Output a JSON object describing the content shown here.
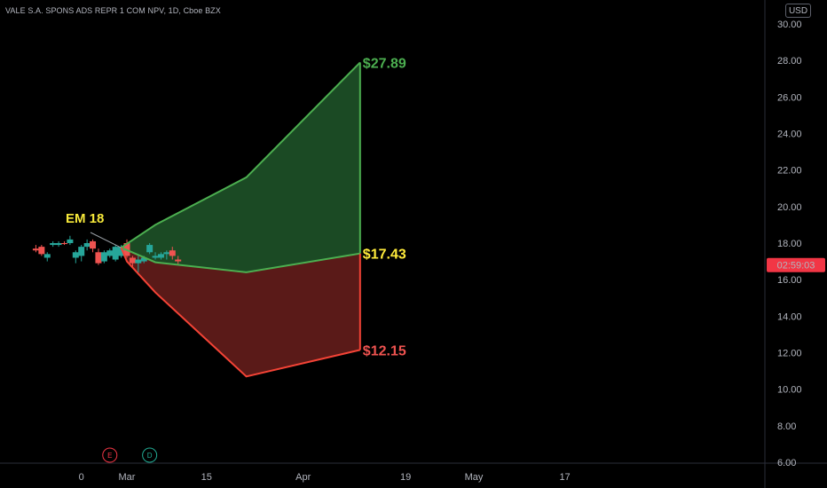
{
  "header": {
    "symbol_title": "VALE S.A. SPONS ADS REPR 1 COM NPV, 1D, Cboe BZX",
    "currency": "USD"
  },
  "price_axis": {
    "ticks": [
      "30.00",
      "28.00",
      "26.00",
      "24.00",
      "22.00",
      "20.00",
      "18.00",
      "16.00",
      "14.00",
      "12.00",
      "10.00",
      "8.00",
      "6.00"
    ],
    "countdown_label": "02:59:03",
    "countdown_price": 16.8
  },
  "time_axis": {
    "ticks": [
      {
        "label": "0",
        "day": -8
      },
      {
        "label": "Mar",
        "day": 0
      },
      {
        "label": "15",
        "day": 14
      },
      {
        "label": "Apr",
        "day": 31
      },
      {
        "label": "19",
        "day": 49
      },
      {
        "label": "May",
        "day": 61
      },
      {
        "label": "17",
        "day": 77
      }
    ]
  },
  "annotations": {
    "em_label": "EM 18",
    "upper_label": "$27.89",
    "mid_label": "$17.43",
    "lower_label": "$12.15"
  },
  "events": [
    {
      "label": "E",
      "day": -3,
      "color": "#f23645"
    },
    {
      "label": "D",
      "day": 4,
      "color": "#22ab94"
    }
  ],
  "colors": {
    "up_candle": "#26a69a",
    "down_candle": "#ef5350",
    "upper_line": "#4caf50",
    "lower_line": "#f44336",
    "upper_fill": "#1b4a24",
    "lower_fill": "#5a1a18",
    "em_color": "#f7e93a",
    "mid_color": "#ffeb3b"
  },
  "chart_data": {
    "type": "candlestick",
    "x_axis": "days relative to 1 Mar",
    "ylim": [
      6,
      30
    ],
    "candles": [
      {
        "day": -16,
        "o": 17.7,
        "h": 17.9,
        "l": 17.5,
        "c": 17.6
      },
      {
        "day": -15,
        "o": 17.8,
        "h": 17.9,
        "l": 17.3,
        "c": 17.4
      },
      {
        "day": -14,
        "o": 17.2,
        "h": 17.5,
        "l": 17.0,
        "c": 17.4
      },
      {
        "day": -13,
        "o": 17.9,
        "h": 18.1,
        "l": 17.8,
        "c": 18.0
      },
      {
        "day": -12,
        "o": 17.9,
        "h": 18.1,
        "l": 17.8,
        "c": 18.0
      },
      {
        "day": -11,
        "o": 18.0,
        "h": 18.1,
        "l": 17.9,
        "c": 17.95
      },
      {
        "day": -10,
        "o": 18.0,
        "h": 18.4,
        "l": 17.9,
        "c": 18.2
      },
      {
        "day": -9,
        "o": 17.2,
        "h": 17.6,
        "l": 16.9,
        "c": 17.5
      },
      {
        "day": -8,
        "o": 17.3,
        "h": 17.9,
        "l": 17.0,
        "c": 17.8
      },
      {
        "day": -7,
        "o": 17.8,
        "h": 18.2,
        "l": 17.6,
        "c": 18.0
      },
      {
        "day": -6,
        "o": 18.1,
        "h": 18.2,
        "l": 17.5,
        "c": 17.7
      },
      {
        "day": -5,
        "o": 17.5,
        "h": 17.7,
        "l": 16.8,
        "c": 16.9
      },
      {
        "day": -4,
        "o": 17.0,
        "h": 17.6,
        "l": 16.9,
        "c": 17.5
      },
      {
        "day": -3,
        "o": 17.3,
        "h": 17.7,
        "l": 17.2,
        "c": 17.6
      },
      {
        "day": -2,
        "o": 17.1,
        "h": 17.9,
        "l": 17.0,
        "c": 17.8
      },
      {
        "day": -1,
        "o": 17.3,
        "h": 17.9,
        "l": 17.2,
        "c": 17.8
      },
      {
        "day": 0,
        "o": 18.0,
        "h": 18.2,
        "l": 17.2,
        "c": 17.3
      },
      {
        "day": 1,
        "o": 17.2,
        "h": 17.3,
        "l": 16.7,
        "c": 16.9
      },
      {
        "day": 2,
        "o": 16.9,
        "h": 17.3,
        "l": 16.4,
        "c": 17.1
      },
      {
        "day": 3,
        "o": 17.0,
        "h": 17.3,
        "l": 16.9,
        "c": 17.2
      },
      {
        "day": 4,
        "o": 17.5,
        "h": 18.0,
        "l": 17.4,
        "c": 17.9
      },
      {
        "day": 5,
        "o": 17.2,
        "h": 17.5,
        "l": 17.1,
        "c": 17.3
      },
      {
        "day": 6,
        "o": 17.2,
        "h": 17.5,
        "l": 17.1,
        "c": 17.4
      },
      {
        "day": 7,
        "o": 17.4,
        "h": 17.6,
        "l": 17.1,
        "c": 17.5
      },
      {
        "day": 8,
        "o": 17.6,
        "h": 17.8,
        "l": 17.1,
        "c": 17.3
      },
      {
        "day": 9,
        "o": 17.1,
        "h": 17.3,
        "l": 16.8,
        "c": 17.0
      }
    ],
    "expected_move": {
      "upper": [
        {
          "day": -1,
          "p": 17.75
        },
        {
          "day": 5,
          "p": 19.0
        },
        {
          "day": 21,
          "p": 21.6
        },
        {
          "day": 41,
          "p": 27.89
        }
      ],
      "mid": [
        {
          "day": -1,
          "p": 17.75
        },
        {
          "day": 5,
          "p": 16.95
        },
        {
          "day": 21,
          "p": 16.4
        },
        {
          "day": 41,
          "p": 17.43
        }
      ],
      "lower": [
        {
          "day": -1,
          "p": 17.75
        },
        {
          "day": 0,
          "p": 17.0
        },
        {
          "day": 5,
          "p": 15.3
        },
        {
          "day": 21,
          "p": 10.7
        },
        {
          "day": 41,
          "p": 12.15
        }
      ]
    },
    "title": "VALE S.A. SPONS ADS REPR 1 COM NPV, 1D, Cboe BZX"
  }
}
